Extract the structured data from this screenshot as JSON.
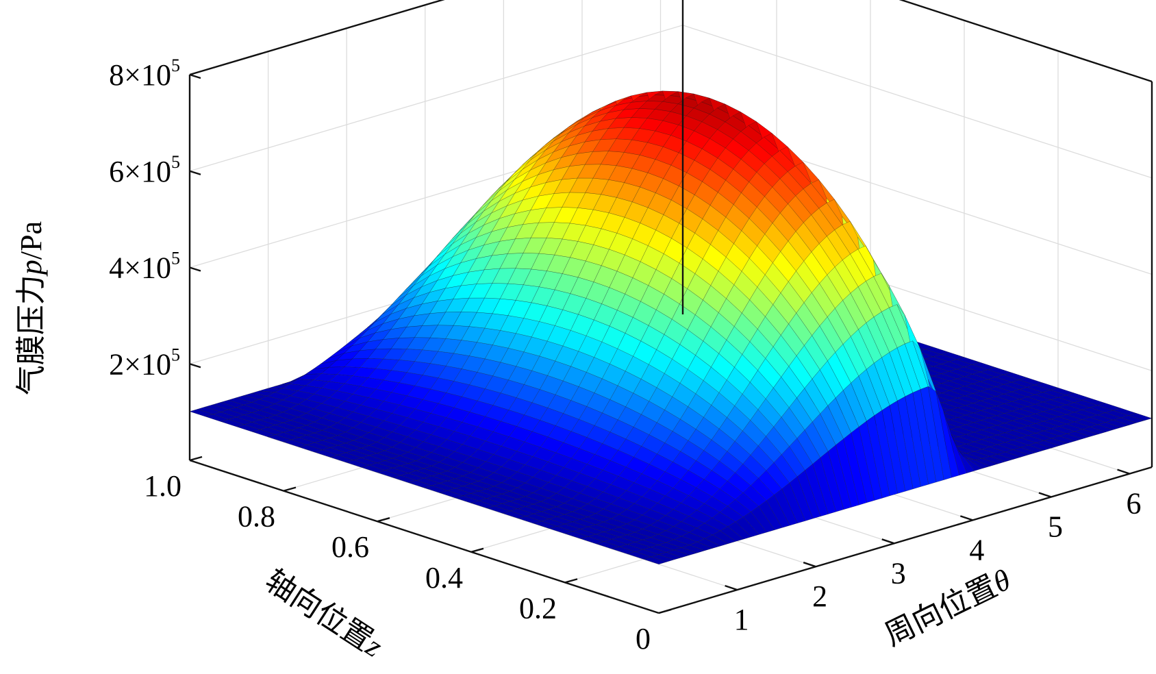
{
  "chart_data": {
    "type": "surface",
    "zlabel": {
      "cn": "气膜压力",
      "var": "p",
      "unit": "/Pa"
    },
    "xlabel": {
      "cn": "周向位置",
      "var": "θ"
    },
    "ylabel": {
      "cn": "轴向位置",
      "var": "z"
    },
    "x_axis": {
      "range": [
        0,
        6.2832
      ],
      "ticks": [
        1,
        2,
        3,
        4,
        5,
        6
      ],
      "tick_labels": [
        "1",
        "2",
        "3",
        "4",
        "5",
        "6"
      ]
    },
    "y_axis": {
      "range": [
        0,
        1.0
      ],
      "ticks": [
        0,
        0.2,
        0.4,
        0.6,
        0.8,
        1.0
      ],
      "tick_labels": [
        "0",
        "0.2",
        "0.4",
        "0.6",
        "0.8",
        "1.0"
      ]
    },
    "z_axis": {
      "range": [
        0,
        800000
      ],
      "ticks": [
        200000,
        400000,
        600000,
        800000
      ],
      "tick_labels": [
        {
          "m": "2×10",
          "e": "5"
        },
        {
          "m": "4×10",
          "e": "5"
        },
        {
          "m": "6×10",
          "e": "5"
        },
        {
          "m": "8×10",
          "e": "5"
        }
      ]
    },
    "ambient_pressure": 101325,
    "peak_pressure": 735000,
    "peak_theta": 3.6,
    "grid": true,
    "colormap": "jet",
    "colormap_stops": [
      "#00008f",
      "#0000ff",
      "#00ffff",
      "#ffff00",
      "#ff0000",
      "#800000"
    ]
  }
}
